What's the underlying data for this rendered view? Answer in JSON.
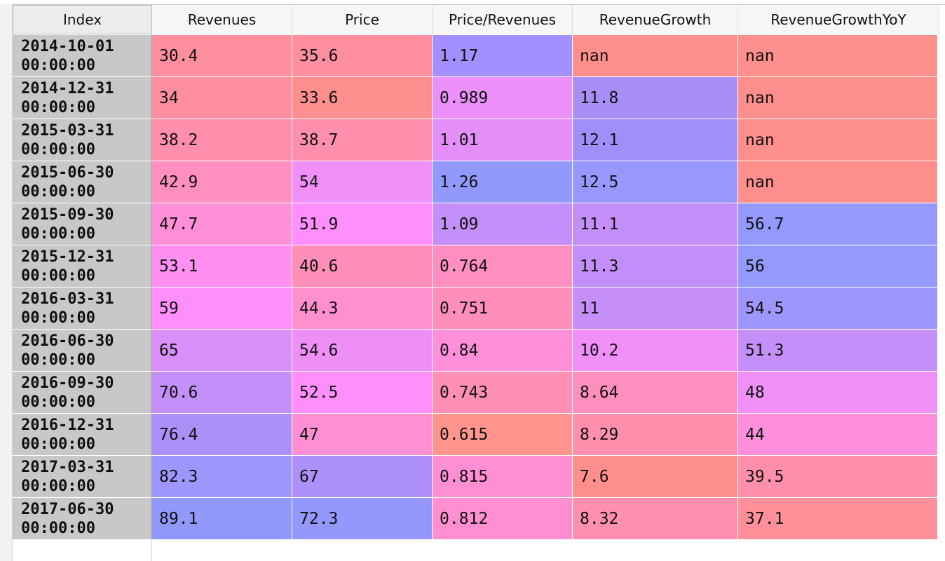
{
  "table": {
    "columns": [
      "Index",
      "Revenues",
      "Price",
      "Price/Revenues",
      "RevenueGrowth",
      "RevenueGrowthYoY"
    ],
    "rows": [
      {
        "index": "2014-10-01\n00:00:00",
        "cells": [
          {
            "text": "30.4",
            "color": "#ff8e9e"
          },
          {
            "text": "35.6",
            "color": "#ff8e9e"
          },
          {
            "text": "1.17",
            "color": "#a38ffd"
          },
          {
            "text": "nan",
            "color": "#ff8f8c"
          },
          {
            "text": "nan",
            "color": "#ff8f8c"
          }
        ]
      },
      {
        "index": "2014-12-31\n00:00:00",
        "cells": [
          {
            "text": "34",
            "color": "#ff8ea0"
          },
          {
            "text": "33.6",
            "color": "#ff8f8f"
          },
          {
            "text": "0.989",
            "color": "#ea90f8"
          },
          {
            "text": "11.8",
            "color": "#a88ff8"
          },
          {
            "text": "nan",
            "color": "#ff8f8c"
          }
        ]
      },
      {
        "index": "2015-03-31\n00:00:00",
        "cells": [
          {
            "text": "38.2",
            "color": "#ff8fac"
          },
          {
            "text": "38.7",
            "color": "#ff8fac"
          },
          {
            "text": "1.01",
            "color": "#e48ff8"
          },
          {
            "text": "12.1",
            "color": "#a08ffb"
          },
          {
            "text": "nan",
            "color": "#ff8f8c"
          }
        ]
      },
      {
        "index": "2015-06-30\n00:00:00",
        "cells": [
          {
            "text": "42.9",
            "color": "#ff8fbf"
          },
          {
            "text": "54",
            "color": "#f08ff8"
          },
          {
            "text": "1.26",
            "color": "#9199fd"
          },
          {
            "text": "12.5",
            "color": "#9797fd"
          },
          {
            "text": "nan",
            "color": "#ff8f8c"
          }
        ]
      },
      {
        "index": "2015-09-30\n00:00:00",
        "cells": [
          {
            "text": "47.7",
            "color": "#ff8fd7"
          },
          {
            "text": "51.9",
            "color": "#ff8ffd"
          },
          {
            "text": "1.09",
            "color": "#c48ff8"
          },
          {
            "text": "11.1",
            "color": "#c48ff8"
          },
          {
            "text": "56.7",
            "color": "#9399fd"
          }
        ]
      },
      {
        "index": "2015-12-31\n00:00:00",
        "cells": [
          {
            "text": "53.1",
            "color": "#ff8ff0"
          },
          {
            "text": "40.6",
            "color": "#ff8fb8"
          },
          {
            "text": "0.764",
            "color": "#ff8fc0"
          },
          {
            "text": "11.3",
            "color": "#c28ff8"
          },
          {
            "text": "56",
            "color": "#9499fd"
          }
        ]
      },
      {
        "index": "2016-03-31\n00:00:00",
        "cells": [
          {
            "text": "59",
            "color": "#ff8ffd"
          },
          {
            "text": "44.3",
            "color": "#ff8fcd"
          },
          {
            "text": "0.751",
            "color": "#ff8fb8"
          },
          {
            "text": "11",
            "color": "#c68ff8"
          },
          {
            "text": "54.5",
            "color": "#9f96fd"
          }
        ]
      },
      {
        "index": "2016-06-30\n00:00:00",
        "cells": [
          {
            "text": "65",
            "color": "#d88ff8"
          },
          {
            "text": "54.6",
            "color": "#ee8ff8"
          },
          {
            "text": "0.84",
            "color": "#ff8fd8"
          },
          {
            "text": "10.2",
            "color": "#f08ff8"
          },
          {
            "text": "51.3",
            "color": "#c48ff8"
          }
        ]
      },
      {
        "index": "2016-09-30\n00:00:00",
        "cells": [
          {
            "text": "70.6",
            "color": "#c38ff8"
          },
          {
            "text": "52.5",
            "color": "#ff8ffd"
          },
          {
            "text": "0.743",
            "color": "#ff8fb5"
          },
          {
            "text": "8.64",
            "color": "#ff8fbd"
          },
          {
            "text": "48",
            "color": "#f08ff8"
          }
        ]
      },
      {
        "index": "2016-12-31\n00:00:00",
        "cells": [
          {
            "text": "76.4",
            "color": "#ad8ff8"
          },
          {
            "text": "47",
            "color": "#ff8fd3"
          },
          {
            "text": "0.615",
            "color": "#ff958c"
          },
          {
            "text": "8.29",
            "color": "#ff8fad"
          },
          {
            "text": "44",
            "color": "#ff8fdc"
          }
        ]
      },
      {
        "index": "2017-03-31\n00:00:00",
        "cells": [
          {
            "text": "82.3",
            "color": "#9e96fd"
          },
          {
            "text": "67",
            "color": "#ad8ff8"
          },
          {
            "text": "0.815",
            "color": "#ff8fd3"
          },
          {
            "text": "7.6",
            "color": "#ff8f8c"
          },
          {
            "text": "39.5",
            "color": "#ff8fab"
          }
        ]
      },
      {
        "index": "2017-06-30\n00:00:00",
        "cells": [
          {
            "text": "89.1",
            "color": "#9199fd"
          },
          {
            "text": "72.3",
            "color": "#9498fd"
          },
          {
            "text": "0.812",
            "color": "#ff8fd0"
          },
          {
            "text": "8.32",
            "color": "#ff8fae"
          },
          {
            "text": "37.1",
            "color": "#ff8f98"
          }
        ]
      }
    ]
  }
}
